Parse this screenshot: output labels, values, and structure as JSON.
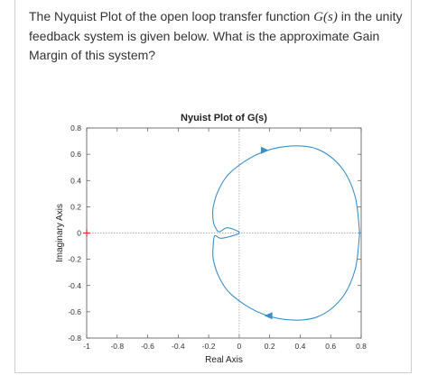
{
  "question": {
    "before": "The Nyquist Plot of the open loop transfer function ",
    "func": "G(s)",
    "after": " in the unity feedback system is given below. What is the approximate Gain Margin of this system?"
  },
  "chart_data": {
    "type": "line",
    "title": "Nyuist Plot of G(s)",
    "xlabel": "Real Axis",
    "ylabel": "Imaginary Axis",
    "xlim": [
      -1,
      0.8
    ],
    "ylim": [
      -0.8,
      0.8
    ],
    "xticks": [
      "-1",
      "-0.8",
      "-0.6",
      "-0.4",
      "-0.2",
      "0",
      "0.2",
      "0.4",
      "0.6",
      "0.8"
    ],
    "yticks": [
      "0.8",
      "0.6",
      "0.4",
      "0.2",
      "0",
      "-0.2",
      "-0.4",
      "-0.6",
      "-0.8"
    ],
    "grid": false,
    "critical_point": {
      "x": -1,
      "y": 0,
      "marker": "+",
      "color": "#e03030"
    },
    "curve_color": "#3b8fc9",
    "series": [
      {
        "x": [
          0.79,
          0.76,
          0.67,
          0.51,
          0.31,
          0.12,
          -0.05,
          -0.13,
          -0.17,
          -0.17,
          -0.15,
          -0.13,
          -0.08,
          -0.02,
          0.0,
          -0.04,
          -0.12,
          -0.16,
          -0.17,
          -0.17,
          -0.13,
          -0.05,
          0.12,
          0.31,
          0.51,
          0.67,
          0.76,
          0.79
        ],
        "y": [
          0.0,
          0.28,
          0.5,
          0.64,
          0.66,
          0.6,
          0.47,
          0.34,
          0.2,
          0.09,
          0.03,
          0.01,
          0.04,
          0.02,
          0.0,
          -0.02,
          -0.04,
          -0.02,
          -0.09,
          -0.2,
          -0.34,
          -0.47,
          -0.6,
          -0.66,
          -0.64,
          -0.5,
          -0.28,
          0.0
        ]
      }
    ],
    "arrows": [
      {
        "x": 0.16,
        "y": 0.63,
        "direction": "right"
      },
      {
        "x": 0.2,
        "y": -0.63,
        "direction": "left"
      }
    ]
  }
}
